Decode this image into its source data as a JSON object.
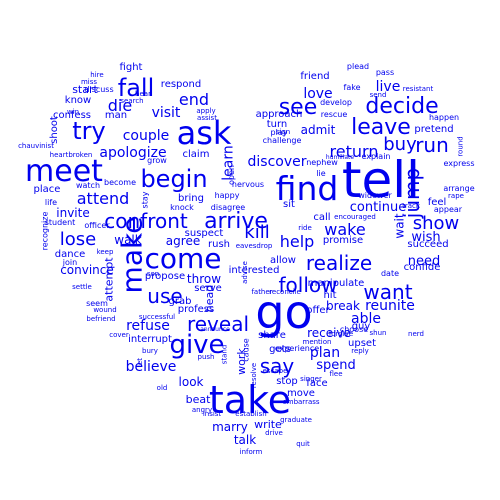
{
  "cloud": {
    "color": "#0000ee",
    "words": [
      {
        "text": "tell"
      },
      {
        "text": "go"
      },
      {
        "text": "take"
      },
      {
        "text": "find"
      },
      {
        "text": "meet"
      },
      {
        "text": "ask"
      },
      {
        "text": "make"
      },
      {
        "text": "come"
      },
      {
        "text": "give"
      },
      {
        "text": "fall"
      },
      {
        "text": "try"
      },
      {
        "text": "begin"
      },
      {
        "text": "see"
      },
      {
        "text": "leave"
      },
      {
        "text": "decide"
      },
      {
        "text": "arrive"
      },
      {
        "text": "confront"
      },
      {
        "text": "realize"
      },
      {
        "text": "want"
      },
      {
        "text": "follow"
      },
      {
        "text": "say"
      },
      {
        "text": "reveal"
      },
      {
        "text": "use"
      },
      {
        "text": "jump"
      },
      {
        "text": "run"
      },
      {
        "text": "buy"
      },
      {
        "text": "show"
      },
      {
        "text": "kill"
      },
      {
        "text": "wake"
      },
      {
        "text": "help"
      },
      {
        "text": "return"
      },
      {
        "text": "lose"
      },
      {
        "text": "die"
      },
      {
        "text": "end"
      },
      {
        "text": "attend"
      },
      {
        "text": "visit"
      },
      {
        "text": "couple"
      },
      {
        "text": "apologize"
      },
      {
        "text": "learn"
      },
      {
        "text": "discover"
      },
      {
        "text": "love"
      },
      {
        "text": "live"
      },
      {
        "text": "admit"
      },
      {
        "text": "continue"
      },
      {
        "text": "wish"
      },
      {
        "text": "need"
      },
      {
        "text": "wait"
      },
      {
        "text": "reunite"
      },
      {
        "text": "able"
      },
      {
        "text": "refuse"
      },
      {
        "text": "believe"
      },
      {
        "text": "agree"
      },
      {
        "text": "throw"
      },
      {
        "text": "walk"
      },
      {
        "text": "invite"
      },
      {
        "text": "convince"
      },
      {
        "text": "plan"
      },
      {
        "text": "spend"
      },
      {
        "text": "break"
      },
      {
        "text": "receive"
      },
      {
        "text": "look"
      },
      {
        "text": "beat"
      },
      {
        "text": "marry"
      },
      {
        "text": "talk"
      },
      {
        "text": "write"
      },
      {
        "text": "work"
      },
      {
        "text": "head"
      },
      {
        "text": "attempt"
      },
      {
        "text": "start"
      },
      {
        "text": "know"
      },
      {
        "text": "fight"
      },
      {
        "text": "respond"
      },
      {
        "text": "friend"
      },
      {
        "text": "approach"
      },
      {
        "text": "turn"
      },
      {
        "text": "feel"
      },
      {
        "text": "allow"
      },
      {
        "text": "promise"
      },
      {
        "text": "call"
      },
      {
        "text": "face"
      },
      {
        "text": "stop"
      },
      {
        "text": "move"
      },
      {
        "text": "gets"
      },
      {
        "text": "share"
      },
      {
        "text": "interrupt"
      },
      {
        "text": "grab"
      },
      {
        "text": "propose"
      },
      {
        "text": "bring"
      },
      {
        "text": "claim"
      },
      {
        "text": "pretend"
      },
      {
        "text": "place"
      },
      {
        "text": "dance"
      },
      {
        "text": "shoot"
      },
      {
        "text": "confess"
      },
      {
        "text": "man"
      },
      {
        "text": "profess"
      },
      {
        "text": "serve"
      },
      {
        "text": "rush"
      },
      {
        "text": "hit"
      },
      {
        "text": "guy"
      },
      {
        "text": "upset"
      },
      {
        "text": "offer"
      },
      {
        "text": "sit"
      },
      {
        "text": "suspect"
      },
      {
        "text": "interested"
      },
      {
        "text": "manipulate"
      },
      {
        "text": "confide"
      },
      {
        "text": "succeed"
      },
      {
        "text": "widower"
      },
      {
        "text": "date"
      },
      {
        "text": "appear"
      },
      {
        "text": "arrange"
      },
      {
        "text": "express"
      },
      {
        "text": "happen"
      },
      {
        "text": "pass"
      },
      {
        "text": "plead"
      },
      {
        "text": "fake"
      },
      {
        "text": "develop"
      },
      {
        "text": "rescue"
      },
      {
        "text": "explain"
      },
      {
        "text": "humiliate"
      },
      {
        "text": "nephew"
      },
      {
        "text": "lie"
      },
      {
        "text": "play"
      },
      {
        "text": "challenge"
      },
      {
        "text": "sign"
      },
      {
        "text": "open"
      },
      {
        "text": "nervous"
      },
      {
        "text": "happy"
      },
      {
        "text": "disagree"
      },
      {
        "text": "knock"
      },
      {
        "text": "grow"
      },
      {
        "text": "become"
      },
      {
        "text": "stay"
      },
      {
        "text": "watch"
      },
      {
        "text": "life"
      },
      {
        "text": "student"
      },
      {
        "text": "recognize"
      },
      {
        "text": "officer"
      },
      {
        "text": "join"
      },
      {
        "text": "discuss"
      },
      {
        "text": "miss"
      },
      {
        "text": "hire"
      },
      {
        "text": "win"
      },
      {
        "text": "hear"
      },
      {
        "text": "search"
      },
      {
        "text": "heartbroken"
      },
      {
        "text": "chauvinist"
      },
      {
        "text": "settle"
      },
      {
        "text": "seem"
      },
      {
        "text": "wound"
      },
      {
        "text": "befriend"
      },
      {
        "text": "cover"
      },
      {
        "text": "keep"
      },
      {
        "text": "son"
      },
      {
        "text": "successful"
      },
      {
        "text": "bury"
      },
      {
        "text": "let"
      },
      {
        "text": "old"
      },
      {
        "text": "push"
      },
      {
        "text": "announce"
      },
      {
        "text": "stand"
      },
      {
        "text": "cause"
      },
      {
        "text": "resolve"
      },
      {
        "text": "escape"
      },
      {
        "text": "embarrass"
      },
      {
        "text": "flee"
      },
      {
        "text": "mention"
      },
      {
        "text": "reply"
      },
      {
        "text": "experience"
      },
      {
        "text": "singer"
      },
      {
        "text": "graduate"
      },
      {
        "text": "establish"
      },
      {
        "text": "drive"
      },
      {
        "text": "insist"
      },
      {
        "text": "angry"
      },
      {
        "text": "quit"
      },
      {
        "text": "inform"
      },
      {
        "text": "choose"
      },
      {
        "text": "forgive"
      },
      {
        "text": "shun"
      },
      {
        "text": "nerd"
      },
      {
        "text": "encouraged"
      },
      {
        "text": "ride"
      },
      {
        "text": "eavesdrop"
      },
      {
        "text": "advise"
      },
      {
        "text": "father"
      },
      {
        "text": "reconcile"
      },
      {
        "text": "track"
      },
      {
        "text": "rape"
      },
      {
        "text": "round"
      },
      {
        "text": "resistant"
      },
      {
        "text": "send"
      },
      {
        "text": "apply"
      },
      {
        "text": "assist"
      },
      {
        "text": "introduce"
      },
      {
        "text": "pursue"
      }
    ]
  }
}
